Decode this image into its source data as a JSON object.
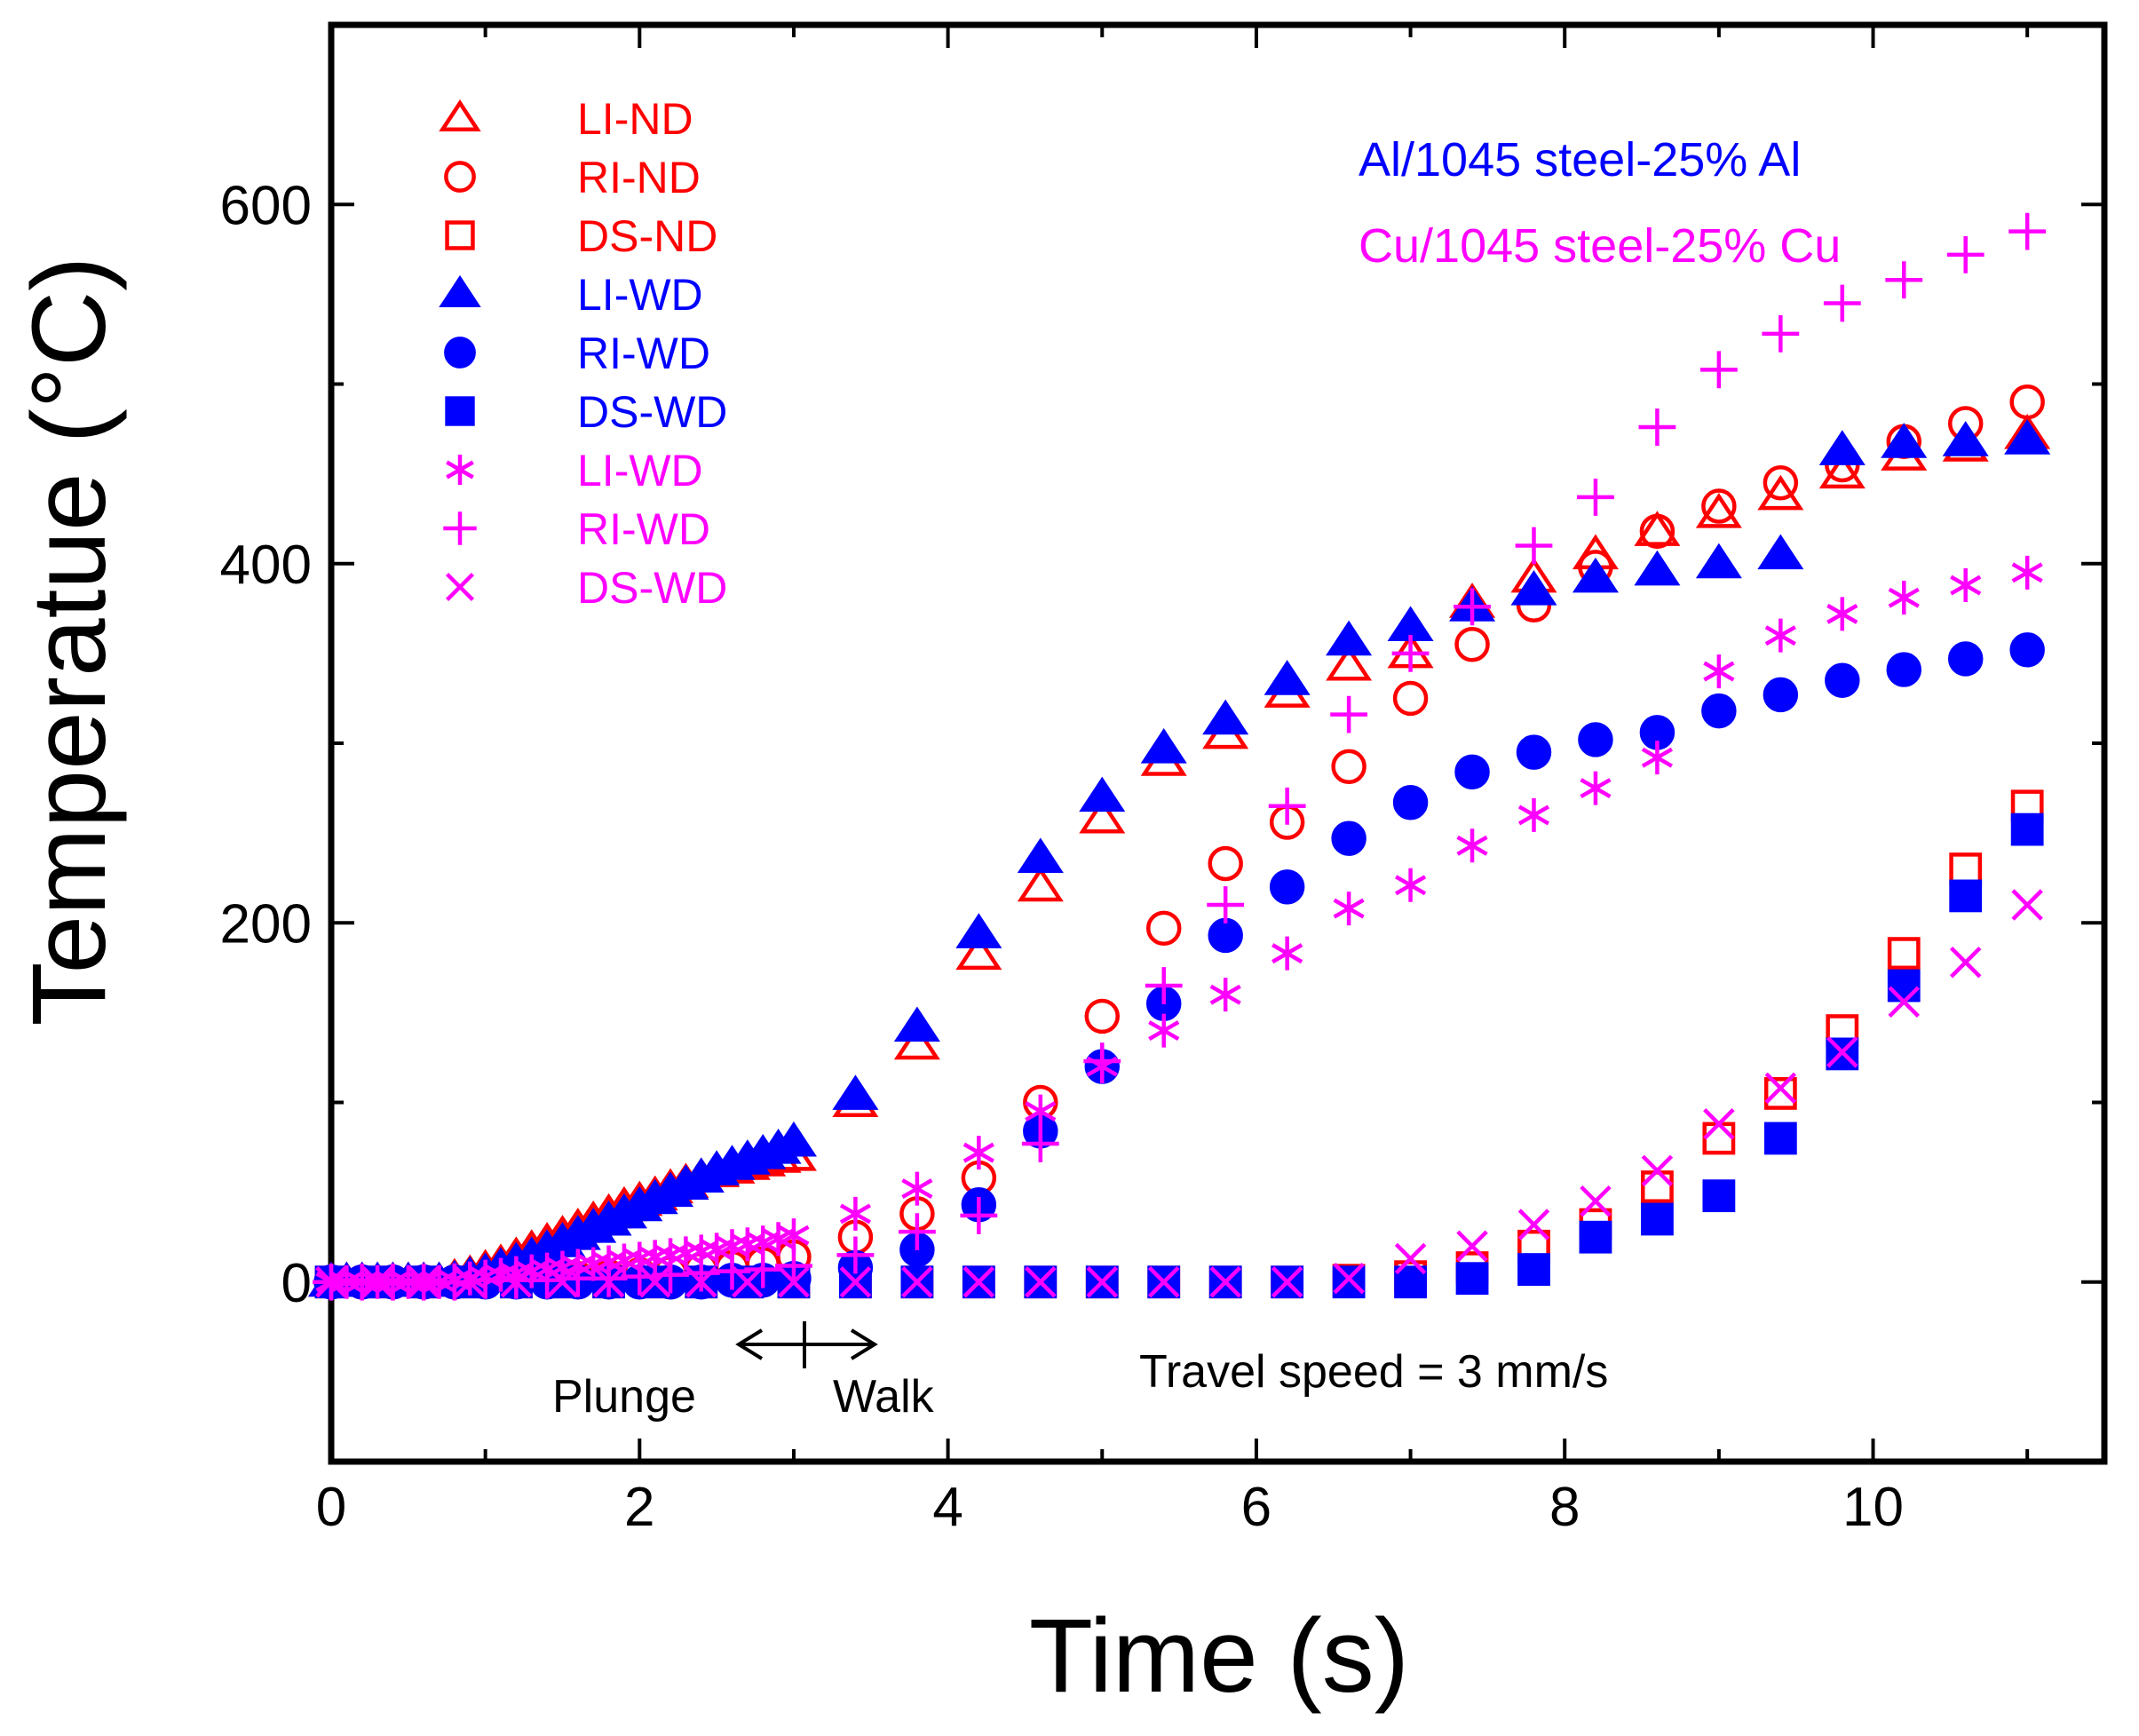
{
  "chart_data": {
    "type": "scatter",
    "title": "",
    "xlabel": "Time (s)",
    "ylabel": "Temperatue (°C)",
    "xlim": [
      0,
      11.5
    ],
    "ylim": [
      -100,
      700
    ],
    "xticks": [
      0,
      2,
      4,
      6,
      8,
      10
    ],
    "yticks": [
      0,
      200,
      400,
      600
    ],
    "colors": {
      "red": "#ff0000",
      "blue": "#0000ff",
      "magenta": "#ff00ff",
      "axis": "#000000"
    },
    "annotations": {
      "group_al": "Al/1045 steel-25% Al",
      "group_cu": "Cu/1045 steel-25% Cu",
      "plunge": "Plunge",
      "walk": "Walk",
      "travel_speed": "Travel speed = 3 mm/s"
    },
    "series": [
      {
        "name": "LI-ND",
        "marker": "triangle-open",
        "color": "#ff0000",
        "x": [
          0.0,
          0.1,
          0.2,
          0.3,
          0.4,
          0.5,
          0.6,
          0.7,
          0.8,
          0.9,
          1.0,
          1.1,
          1.2,
          1.3,
          1.4,
          1.5,
          1.6,
          1.7,
          1.8,
          1.9,
          2.0,
          2.1,
          2.2,
          2.3,
          2.4,
          2.5,
          2.6,
          2.7,
          2.8,
          2.9,
          3.0,
          3.4,
          3.8,
          4.2,
          4.6,
          5.0,
          5.4,
          5.8,
          6.2,
          6.6,
          7.0,
          7.4,
          7.8,
          8.2,
          8.6,
          9.0,
          9.4,
          9.8,
          10.2,
          10.6,
          11.0
        ],
        "y": [
          0,
          0,
          0,
          0,
          0,
          0,
          0,
          0,
          2,
          4,
          7,
          10,
          14,
          18,
          22,
          26,
          30,
          34,
          38,
          42,
          45,
          48,
          52,
          55,
          58,
          61,
          63,
          65,
          67,
          69,
          70,
          100,
          132,
          182,
          220,
          258,
          290,
          305,
          328,
          343,
          350,
          378,
          392,
          405,
          418,
          428,
          438,
          450,
          460,
          465,
          472
        ]
      },
      {
        "name": "RI-ND",
        "marker": "circle-open",
        "color": "#ff0000",
        "x": [
          0.0,
          0.2,
          0.4,
          0.6,
          0.8,
          1.0,
          1.2,
          1.4,
          1.6,
          1.8,
          2.0,
          2.2,
          2.4,
          2.6,
          2.8,
          3.0,
          3.4,
          3.8,
          4.2,
          4.6,
          5.0,
          5.4,
          5.8,
          6.2,
          6.6,
          7.0,
          7.4,
          7.8,
          8.2,
          8.6,
          9.0,
          9.4,
          9.8,
          10.2,
          10.6,
          11.0
        ],
        "y": [
          0,
          0,
          0,
          0,
          0,
          1,
          1,
          2,
          2,
          3,
          4,
          5,
          7,
          8,
          10,
          14,
          25,
          38,
          58,
          100,
          148,
          197,
          233,
          256,
          287,
          325,
          355,
          377,
          398,
          418,
          432,
          445,
          455,
          468,
          478,
          490
        ]
      },
      {
        "name": "DS-ND",
        "marker": "square-open",
        "color": "#ff0000",
        "x": [
          0.0,
          0.3,
          0.6,
          0.9,
          1.2,
          1.5,
          1.8,
          2.1,
          2.4,
          2.7,
          3.0,
          3.4,
          3.8,
          4.2,
          4.6,
          5.0,
          5.4,
          5.8,
          6.2,
          6.6,
          7.0,
          7.4,
          7.8,
          8.2,
          8.6,
          9.0,
          9.4,
          9.8,
          10.2,
          10.6,
          11.0
        ],
        "y": [
          0,
          0,
          0,
          0,
          0,
          0,
          0,
          0,
          0,
          0,
          0,
          0,
          0,
          0,
          0,
          0,
          0,
          0,
          0,
          1,
          3,
          8,
          20,
          32,
          53,
          80,
          105,
          140,
          183,
          230,
          265
        ]
      },
      {
        "name": "LI-WD",
        "marker": "triangle-filled",
        "color": "#0000ff",
        "x": [
          0.0,
          0.1,
          0.2,
          0.3,
          0.4,
          0.5,
          0.6,
          0.7,
          0.8,
          0.9,
          1.0,
          1.1,
          1.2,
          1.3,
          1.4,
          1.5,
          1.6,
          1.7,
          1.8,
          1.9,
          2.0,
          2.1,
          2.2,
          2.3,
          2.4,
          2.5,
          2.6,
          2.7,
          2.8,
          2.9,
          3.0,
          3.4,
          3.8,
          4.2,
          4.6,
          5.0,
          5.4,
          5.8,
          6.2,
          6.6,
          7.0,
          7.4,
          7.8,
          8.2,
          8.6,
          9.0,
          9.4,
          9.8,
          10.2,
          10.6,
          11.0
        ],
        "y": [
          0,
          0,
          0,
          0,
          0,
          0,
          0,
          0,
          1,
          3,
          5,
          8,
          11,
          14,
          18,
          22,
          26,
          30,
          34,
          38,
          42,
          46,
          50,
          54,
          58,
          62,
          65,
          68,
          71,
          74,
          78,
          104,
          142,
          194,
          236,
          270,
          297,
          313,
          335,
          357,
          365,
          376,
          385,
          392,
          396,
          400,
          405,
          463,
          467,
          468,
          469
        ]
      },
      {
        "name": "RI-WD",
        "marker": "circle-filled",
        "color": "#0000ff",
        "x": [
          0.0,
          0.2,
          0.4,
          0.6,
          0.8,
          1.0,
          1.2,
          1.4,
          1.6,
          1.8,
          2.0,
          2.2,
          2.4,
          2.6,
          2.8,
          3.0,
          3.4,
          3.8,
          4.2,
          4.6,
          5.0,
          5.4,
          5.8,
          6.2,
          6.6,
          7.0,
          7.4,
          7.8,
          8.2,
          8.6,
          9.0,
          9.4,
          9.8,
          10.2,
          10.6,
          11.0
        ],
        "y": [
          0,
          0,
          0,
          0,
          0,
          0,
          0,
          0,
          0,
          0,
          0,
          0,
          0,
          1,
          1,
          2,
          8,
          18,
          43,
          84,
          120,
          155,
          193,
          220,
          247,
          267,
          284,
          295,
          302,
          306,
          318,
          327,
          335,
          341,
          347,
          352
        ]
      },
      {
        "name": "DS-WD",
        "marker": "square-filled",
        "color": "#0000ff",
        "x": [
          0.0,
          0.3,
          0.6,
          0.9,
          1.2,
          1.5,
          1.8,
          2.1,
          2.4,
          2.7,
          3.0,
          3.4,
          3.8,
          4.2,
          4.6,
          5.0,
          5.4,
          5.8,
          6.2,
          6.6,
          7.0,
          7.4,
          7.8,
          8.2,
          8.6,
          9.0,
          9.4,
          9.8,
          10.2,
          10.6,
          11.0
        ],
        "y": [
          0,
          0,
          0,
          0,
          0,
          0,
          0,
          0,
          0,
          0,
          0,
          0,
          0,
          0,
          0,
          0,
          0,
          0,
          0,
          0,
          0,
          2,
          7,
          25,
          35,
          48,
          80,
          127,
          165,
          215,
          252
        ]
      },
      {
        "name": "LI-WD",
        "marker": "asterisk",
        "color": "#ff00ff",
        "x": [
          0.0,
          0.1,
          0.2,
          0.3,
          0.4,
          0.5,
          0.6,
          0.7,
          0.8,
          0.9,
          1.0,
          1.1,
          1.2,
          1.3,
          1.4,
          1.5,
          1.6,
          1.7,
          1.8,
          1.9,
          2.0,
          2.1,
          2.2,
          2.3,
          2.4,
          2.5,
          2.6,
          2.7,
          2.8,
          2.9,
          3.0,
          3.4,
          3.8,
          4.2,
          4.6,
          5.0,
          5.4,
          5.8,
          6.2,
          6.6,
          7.0,
          7.4,
          7.8,
          8.2,
          8.6,
          9.0,
          9.4,
          9.8,
          10.2,
          10.6,
          11.0
        ],
        "y": [
          0,
          0,
          0,
          0,
          0,
          0,
          0,
          0,
          1,
          2,
          3,
          4,
          5,
          6,
          7,
          8,
          9,
          10,
          11,
          12,
          13,
          14,
          15,
          16,
          17,
          18,
          20,
          21,
          22,
          24,
          26,
          38,
          52,
          72,
          95,
          120,
          140,
          160,
          183,
          208,
          221,
          243,
          260,
          275,
          292,
          340,
          360,
          372,
          381,
          388,
          395
        ]
      },
      {
        "name": "RI-WD",
        "marker": "plus",
        "color": "#ff00ff",
        "x": [
          0.0,
          0.2,
          0.4,
          0.6,
          0.8,
          1.0,
          1.2,
          1.4,
          1.6,
          1.8,
          2.0,
          2.2,
          2.4,
          2.6,
          2.8,
          3.0,
          3.4,
          3.8,
          4.2,
          4.6,
          5.0,
          5.4,
          5.8,
          6.2,
          6.6,
          7.0,
          7.4,
          7.8,
          8.2,
          8.6,
          9.0,
          9.4,
          9.8,
          10.2,
          10.6,
          11.0
        ],
        "y": [
          0,
          0,
          0,
          0,
          0,
          1,
          1,
          1,
          2,
          2,
          3,
          4,
          5,
          6,
          7,
          9,
          15,
          28,
          37,
          77,
          123,
          165,
          210,
          265,
          316,
          350,
          376,
          410,
          437,
          476,
          508,
          528,
          545,
          558,
          572,
          585
        ]
      },
      {
        "name": "DS-WD",
        "marker": "cross",
        "color": "#ff00ff",
        "x": [
          0.0,
          0.3,
          0.6,
          0.9,
          1.2,
          1.5,
          1.8,
          2.1,
          2.4,
          2.7,
          3.0,
          3.4,
          3.8,
          4.2,
          4.6,
          5.0,
          5.4,
          5.8,
          6.2,
          6.6,
          7.0,
          7.4,
          7.8,
          8.2,
          8.6,
          9.0,
          9.4,
          9.8,
          10.2,
          10.6,
          11.0
        ],
        "y": [
          0,
          0,
          0,
          0,
          0,
          0,
          0,
          0,
          0,
          0,
          0,
          0,
          0,
          0,
          0,
          0,
          0,
          0,
          0,
          2,
          13,
          20,
          32,
          45,
          62,
          88,
          108,
          128,
          156,
          178,
          210
        ]
      }
    ]
  }
}
